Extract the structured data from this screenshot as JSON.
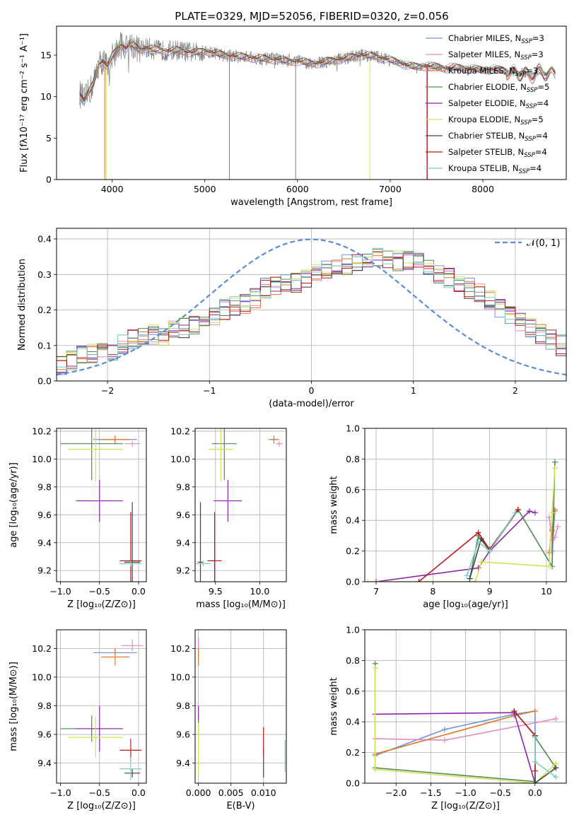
{
  "figure": {
    "title": "PLATE=0329, MJD=52056, FIBERID=0320, z=0.056"
  },
  "colors": {
    "Chabrier MILES": "#6f92db",
    "Salpeter MILES": "#e78ac3",
    "Kroupa MILES": "#e0772a",
    "Chabrier ELODIE": "#4f8a4f",
    "Salpeter ELODIE": "#8e24aa",
    "Kroupa ELODIE": "#d4e157",
    "Chabrier STELIB": "#444444",
    "Salpeter STELIB": "#b71c1c",
    "Kroupa STELIB": "#80cbc4",
    "data": "#808080",
    "normal": "#5b8bd9",
    "grid": "#b0b0b0"
  },
  "chart_data": [
    {
      "id": "spectrum",
      "type": "line",
      "title": "PLATE=0329, MJD=52056, FIBERID=0320, z=0.056",
      "xlabel": "wavelength [Angstrom, rest frame]",
      "ylabel": "Flux [fλ10⁻¹⁷ erg cm⁻² s⁻¹ A⁻¹]",
      "xlim": [
        3400,
        8900
      ],
      "ylim": [
        0,
        18.5
      ],
      "xticks": [
        "4000",
        "5000",
        "6000",
        "7000",
        "8000"
      ],
      "yticks": [
        "0",
        "5",
        "10",
        "15"
      ],
      "grid": false,
      "legend_position": "top-right",
      "data_points": [
        [
          3650,
          10.4
        ],
        [
          3700,
          9.5
        ],
        [
          3750,
          10.6
        ],
        [
          3800,
          11.6
        ],
        [
          3850,
          13.8
        ],
        [
          3900,
          14.3
        ],
        [
          3950,
          13.6
        ],
        [
          4000,
          14.9
        ],
        [
          4050,
          15.6
        ],
        [
          4100,
          16.3
        ],
        [
          4150,
          15.8
        ],
        [
          4200,
          16.4
        ],
        [
          4250,
          16.0
        ],
        [
          4300,
          15.6
        ],
        [
          4350,
          15.9
        ],
        [
          4400,
          15.8
        ],
        [
          4500,
          15.6
        ],
        [
          4600,
          15.5
        ],
        [
          4700,
          15.6
        ],
        [
          4800,
          15.4
        ],
        [
          4900,
          15.3
        ],
        [
          5000,
          15.5
        ],
        [
          5100,
          15.3
        ],
        [
          5200,
          15.0
        ],
        [
          5300,
          14.9
        ],
        [
          5400,
          14.8
        ],
        [
          5500,
          14.7
        ],
        [
          5600,
          14.6
        ],
        [
          5700,
          14.5
        ],
        [
          5800,
          14.5
        ],
        [
          5900,
          14.2
        ],
        [
          6000,
          14.3
        ],
        [
          6100,
          14.1
        ],
        [
          6200,
          14.0
        ],
        [
          6300,
          14.2
        ],
        [
          6400,
          14.4
        ],
        [
          6500,
          14.6
        ],
        [
          6600,
          14.8
        ],
        [
          6700,
          15.0
        ],
        [
          6800,
          14.9
        ],
        [
          6900,
          14.7
        ],
        [
          7000,
          14.4
        ],
        [
          7100,
          14.1
        ],
        [
          7200,
          13.7
        ],
        [
          7300,
          13.6
        ],
        [
          7400,
          13.7
        ],
        [
          7500,
          13.6
        ],
        [
          7600,
          13.4
        ],
        [
          7700,
          13.5
        ],
        [
          7800,
          13.4
        ],
        [
          7900,
          13.3
        ],
        [
          8000,
          13.2
        ],
        [
          8100,
          13.3
        ],
        [
          8200,
          13.2
        ],
        [
          8300,
          12.9
        ],
        [
          8400,
          12.7
        ],
        [
          8500,
          12.6
        ],
        [
          8600,
          12.9
        ],
        [
          8700,
          12.8
        ]
      ],
      "series": [
        {
          "name": "Chabrier MILES, N_SSP=3",
          "label": "Chabrier MILES, N",
          "sub": "SSP",
          "suffix": "=3"
        },
        {
          "name": "Salpeter MILES, N_SSP=3",
          "label": "Salpeter MILES, N",
          "sub": "SSP",
          "suffix": "=3"
        },
        {
          "name": "Kroupa MILES, N_SSP=3",
          "label": "Kroupa MILES, N",
          "sub": "SSP",
          "suffix": "=3"
        },
        {
          "name": "Chabrier ELODIE, N_SSP=5",
          "label": "Chabrier ELODIE, N",
          "sub": "SSP",
          "suffix": "=5"
        },
        {
          "name": "Salpeter ELODIE, N_SSP=4",
          "label": "Salpeter ELODIE, N",
          "sub": "SSP",
          "suffix": "=4"
        },
        {
          "name": "Kroupa ELODIE, N_SSP=5",
          "label": "Kroupa ELODIE, N",
          "sub": "SSP",
          "suffix": "=5"
        },
        {
          "name": "Chabrier STELIB, N_SSP=4",
          "label": "Chabrier STELIB, N",
          "sub": "SSP",
          "suffix": "=4"
        },
        {
          "name": "Salpeter STELIB, N_SSP=4",
          "label": "Salpeter STELIB, N",
          "sub": "SSP",
          "suffix": "=4"
        },
        {
          "name": "Kroupa STELIB, N_SSP=4",
          "label": "Kroupa STELIB, N",
          "sub": "SSP",
          "suffix": "=4"
        }
      ]
    },
    {
      "id": "residuals",
      "type": "line",
      "xlabel": "(data-model)/error",
      "ylabel": "Normed distribution",
      "xlim": [
        -2.5,
        2.5
      ],
      "ylim": [
        0,
        0.43
      ],
      "xticks": [
        "−2",
        "−1",
        "0",
        "1",
        "2"
      ],
      "yticks": [
        "0.0",
        "0.1",
        "0.2",
        "0.3",
        "0.4"
      ],
      "grid": true,
      "legend_position": "top-right",
      "legend": {
        "label": "𝒩(0, 1)"
      },
      "bin_width": 0.1,
      "histogram_envelope": [
        0.045,
        0.06,
        0.075,
        0.08,
        0.08,
        0.085,
        0.1,
        0.115,
        0.125,
        0.13,
        0.13,
        0.14,
        0.15,
        0.16,
        0.17,
        0.185,
        0.2,
        0.215,
        0.22,
        0.235,
        0.26,
        0.27,
        0.275,
        0.28,
        0.29,
        0.3,
        0.31,
        0.32,
        0.33,
        0.34,
        0.345,
        0.345,
        0.34,
        0.34,
        0.335,
        0.33,
        0.32,
        0.305,
        0.29,
        0.275,
        0.26,
        0.245,
        0.225,
        0.205,
        0.185,
        0.165,
        0.15,
        0.13,
        0.115,
        0.1
      ]
    },
    {
      "id": "age-vs-Z",
      "type": "scatter",
      "xlabel": "Z [log₁₀(Z/Z⊙)]",
      "ylabel": "age  [log₁₀(age/yr)]",
      "xlim": [
        -1.05,
        0.1
      ],
      "ylim": [
        9.12,
        10.22
      ],
      "xticks": [
        "−1.0",
        "−0.5",
        "0.0"
      ],
      "yticks": [
        "9.2",
        "9.4",
        "9.6",
        "9.8",
        "10.0",
        "10.2"
      ],
      "grid": true,
      "points": [
        {
          "series": "Chabrier MILES",
          "x": -0.3,
          "xerr": 0.28,
          "y": 10.14,
          "yerr": 0.01
        },
        {
          "series": "Salpeter MILES",
          "x": -0.08,
          "xerr": 0.1,
          "y": 10.11,
          "yerr": 0.02
        },
        {
          "series": "Kroupa MILES",
          "x": -0.3,
          "xerr": 0.18,
          "y": 10.14,
          "yerr": 0.03
        },
        {
          "series": "Chabrier ELODIE",
          "x": -0.6,
          "xerr": 0.4,
          "y": 10.11,
          "yerr": 0.26
        },
        {
          "series": "Salpeter ELODIE",
          "x": -0.5,
          "xerr": 0.3,
          "y": 9.7,
          "yerr": 0.15
        },
        {
          "series": "Kroupa ELODIE",
          "x": -0.55,
          "xerr": 0.35,
          "y": 10.07,
          "yerr": 0.23
        },
        {
          "series": "Chabrier STELIB",
          "x": -0.08,
          "xerr": 0.1,
          "y": 9.26,
          "yerr": 0.43
        },
        {
          "series": "Salpeter STELIB",
          "x": -0.1,
          "xerr": 0.14,
          "y": 9.27,
          "yerr": 0.35
        },
        {
          "series": "Kroupa STELIB",
          "x": -0.1,
          "xerr": 0.14,
          "y": 9.25,
          "yerr": 0.02
        }
      ]
    },
    {
      "id": "age-vs-mass",
      "type": "scatter",
      "xlabel": "mass [log₁₀(M/M⊙)]",
      "ylabel": "",
      "xlim": [
        9.27,
        10.3
      ],
      "ylim": [
        9.12,
        10.22
      ],
      "xticks": [
        "9.5",
        "10.0"
      ],
      "yticks": [
        "9.2",
        "9.4",
        "9.6",
        "9.8",
        "10.0",
        "10.2"
      ],
      "grid": true,
      "points": [
        {
          "series": "Chabrier MILES",
          "x": 10.16,
          "xerr": 0.03,
          "y": 10.14,
          "yerr": 0.01
        },
        {
          "series": "Salpeter MILES",
          "x": 10.22,
          "xerr": 0.04,
          "y": 10.11,
          "yerr": 0.02
        },
        {
          "series": "Kroupa MILES",
          "x": 10.16,
          "xerr": 0.06,
          "y": 10.14,
          "yerr": 0.03
        },
        {
          "series": "Chabrier ELODIE",
          "x": 9.6,
          "xerr": 0.14,
          "y": 10.11,
          "yerr": 0.26
        },
        {
          "series": "Salpeter ELODIE",
          "x": 9.64,
          "xerr": 0.16,
          "y": 9.7,
          "yerr": 0.15
        },
        {
          "series": "Kroupa ELODIE",
          "x": 9.56,
          "xerr": 0.14,
          "y": 10.07,
          "yerr": 0.23
        },
        {
          "series": "Chabrier STELIB",
          "x": 9.33,
          "xerr": 0.03,
          "y": 9.26,
          "yerr": 0.43
        },
        {
          "series": "Salpeter STELIB",
          "x": 9.49,
          "xerr": 0.08,
          "y": 9.27,
          "yerr": 0.35
        },
        {
          "series": "Kroupa STELIB",
          "x": 9.36,
          "xerr": 0.08,
          "y": 9.25,
          "yerr": 0.02
        }
      ]
    },
    {
      "id": "weight-vs-age",
      "type": "line",
      "xlabel": "age  [log₁₀(age/yr)]",
      "ylabel": "mass weight",
      "xlim": [
        6.8,
        10.35
      ],
      "ylim": [
        0,
        1
      ],
      "xticks": [
        "7",
        "8",
        "9",
        "10"
      ],
      "yticks": [
        "0.0",
        "0.2",
        "0.4",
        "0.6",
        "0.8",
        "1.0"
      ],
      "grid": true,
      "series": [
        {
          "name": "Chabrier MILES",
          "x": [
            10.1,
            10.1,
            10.15
          ],
          "y": [
            0.33,
            0.2,
            0.46
          ]
        },
        {
          "name": "Salpeter MILES",
          "x": [
            10.05,
            10.1,
            10.15,
            10.2
          ],
          "y": [
            0.42,
            0.27,
            0.29,
            0.36
          ]
        },
        {
          "name": "Kroupa MILES",
          "x": [
            10.05,
            10.1,
            10.15
          ],
          "y": [
            0.19,
            0.34,
            0.47
          ]
        },
        {
          "name": "Chabrier ELODIE",
          "x": [
            8.65,
            8.8,
            9.0,
            9.5,
            10.1,
            10.15
          ],
          "y": [
            0.02,
            0.3,
            0.2,
            0.47,
            0.1,
            0.78
          ]
        },
        {
          "name": "Salpeter ELODIE",
          "x": [
            7.0,
            8.8,
            9.0,
            9.7,
            9.8
          ],
          "y": [
            0.0,
            0.09,
            0.2,
            0.46,
            0.45
          ]
        },
        {
          "name": "Kroupa ELODIE",
          "x": [
            6.85,
            8.75,
            8.85,
            10.05,
            10.1,
            10.15
          ],
          "y": [
            0.0,
            0.0,
            0.13,
            0.1,
            0.45,
            0.74
          ]
        },
        {
          "name": "Chabrier STELIB",
          "x": [
            8.65,
            8.85,
            9.0,
            9.5
          ],
          "y": [
            0.02,
            0.28,
            0.21,
            0.47
          ]
        },
        {
          "name": "Salpeter STELIB",
          "x": [
            7.75,
            8.8,
            9.0,
            9.5
          ],
          "y": [
            0.0,
            0.32,
            0.21,
            0.47
          ]
        },
        {
          "name": "Kroupa STELIB",
          "x": [
            8.6,
            8.8,
            9.0,
            9.45
          ],
          "y": [
            0.04,
            0.26,
            0.2,
            0.45
          ]
        }
      ]
    },
    {
      "id": "mass-vs-Z",
      "type": "scatter",
      "xlabel": "Z [log₁₀(Z/Z⊙)]",
      "ylabel": "mass [log₁₀(M/M⊙)]",
      "xlim": [
        -1.05,
        0.1
      ],
      "ylim": [
        9.26,
        10.33
      ],
      "xticks": [
        "−1.0",
        "−0.5",
        "0.0"
      ],
      "yticks": [
        "9.4",
        "9.6",
        "9.8",
        "10.0",
        "10.2"
      ],
      "grid": true,
      "points": [
        {
          "series": "Chabrier MILES",
          "x": -0.3,
          "xerr": 0.28,
          "y": 10.17,
          "yerr": 0.02
        },
        {
          "series": "Salpeter MILES",
          "x": -0.08,
          "xerr": 0.14,
          "y": 10.22,
          "yerr": 0.04
        },
        {
          "series": "Kroupa MILES",
          "x": -0.3,
          "xerr": 0.18,
          "y": 10.14,
          "yerr": 0.06
        },
        {
          "series": "Chabrier ELODIE",
          "x": -0.6,
          "xerr": 0.4,
          "y": 9.64,
          "yerr": 0.09
        },
        {
          "series": "Salpeter ELODIE",
          "x": -0.5,
          "xerr": 0.3,
          "y": 9.64,
          "yerr": 0.16
        },
        {
          "series": "Kroupa ELODIE",
          "x": -0.55,
          "xerr": 0.35,
          "y": 9.58,
          "yerr": 0.14
        },
        {
          "series": "Chabrier STELIB",
          "x": -0.08,
          "xerr": 0.1,
          "y": 9.33,
          "yerr": 0.03
        },
        {
          "series": "Salpeter STELIB",
          "x": -0.1,
          "xerr": 0.14,
          "y": 9.49,
          "yerr": 0.08
        },
        {
          "series": "Kroupa STELIB",
          "x": -0.1,
          "xerr": 0.14,
          "y": 9.36,
          "yerr": 0.08
        }
      ]
    },
    {
      "id": "mass-vs-EBV",
      "type": "scatter",
      "xlabel": "E(B-V)",
      "ylabel": "",
      "xlim": [
        -0.0005,
        0.0135
      ],
      "ylim": [
        9.26,
        10.33
      ],
      "xticks": [
        "0.000",
        "0.005",
        "0.010"
      ],
      "yticks": [
        "9.4",
        "9.6",
        "9.8",
        "10.0",
        "10.2"
      ],
      "grid": true,
      "points": [
        {
          "series": "Chabrier MILES",
          "x": 0.0,
          "y": 10.17,
          "yerr": 0.02
        },
        {
          "series": "Salpeter MILES",
          "x": 0.0,
          "y": 10.22,
          "yerr": 0.06
        },
        {
          "series": "Kroupa MILES",
          "x": 0.0,
          "y": 10.14,
          "yerr": 0.06
        },
        {
          "series": "Chabrier ELODIE",
          "x": 0.0,
          "y": 9.64,
          "yerr": 0.09
        },
        {
          "series": "Salpeter ELODIE",
          "x": 0.0,
          "y": 9.75,
          "yerr": 0.05
        },
        {
          "series": "Kroupa ELODIE",
          "x": 0.0,
          "y": 9.5,
          "yerr": 0.18
        },
        {
          "series": "Chabrier STELIB",
          "x": 0.01,
          "y": 9.4,
          "yerr": 0.1
        },
        {
          "series": "Salpeter STELIB",
          "x": 0.01,
          "y": 9.55,
          "yerr": 0.1
        },
        {
          "series": "Kroupa STELIB",
          "x": 0.0133,
          "y": 9.45,
          "yerr": 0.11
        }
      ]
    },
    {
      "id": "weight-vs-Z",
      "type": "line",
      "xlabel": "Z [log₁₀(Z/Z⊙)]",
      "ylabel": "mass weight",
      "xlim": [
        -2.45,
        0.45
      ],
      "ylim": [
        0,
        1
      ],
      "xticks": [
        "−2.0",
        "−1.5",
        "−1.0",
        "−0.5",
        "0.0"
      ],
      "yticks": [
        "0.0",
        "0.2",
        "0.4",
        "0.6",
        "0.8",
        "1.0"
      ],
      "grid": true,
      "series": [
        {
          "name": "Chabrier MILES",
          "x": [
            -2.3,
            -1.3,
            -0.3,
            0.0,
            0.0
          ],
          "y": [
            0.18,
            0.35,
            0.45,
            0.47,
            0.3
          ]
        },
        {
          "name": "Salpeter MILES",
          "x": [
            -2.3,
            -1.3,
            0.3
          ],
          "y": [
            0.29,
            0.28,
            0.42
          ]
        },
        {
          "name": "Kroupa MILES",
          "x": [
            -2.3,
            -0.3,
            0.0
          ],
          "y": [
            0.19,
            0.44,
            0.47
          ]
        },
        {
          "name": "Chabrier ELODIE",
          "x": [
            -2.3,
            -2.3,
            0.0,
            0.0,
            0.3
          ],
          "y": [
            0.78,
            0.1,
            0.01,
            0.3,
            0.1
          ]
        },
        {
          "name": "Salpeter ELODIE",
          "x": [
            -2.3,
            -0.3,
            0.0,
            0.0
          ],
          "y": [
            0.45,
            0.46,
            0.0,
            0.31
          ]
        },
        {
          "name": "Kroupa ELODIE",
          "x": [
            -2.3,
            -2.3,
            0.0,
            0.3
          ],
          "y": [
            0.75,
            0.09,
            0.0,
            0.13
          ]
        },
        {
          "name": "Chabrier STELIB",
          "x": [
            -0.3,
            0.0,
            0.0,
            0.3
          ],
          "y": [
            0.47,
            0.31,
            0.0,
            0.1
          ]
        },
        {
          "name": "Salpeter STELIB",
          "x": [
            -0.3,
            0.0,
            0.0
          ],
          "y": [
            0.47,
            0.31,
            0.08
          ]
        },
        {
          "name": "Kroupa STELIB",
          "x": [
            0.0,
            0.0,
            0.3
          ],
          "y": [
            0.3,
            0.14,
            0.04
          ]
        }
      ]
    }
  ]
}
